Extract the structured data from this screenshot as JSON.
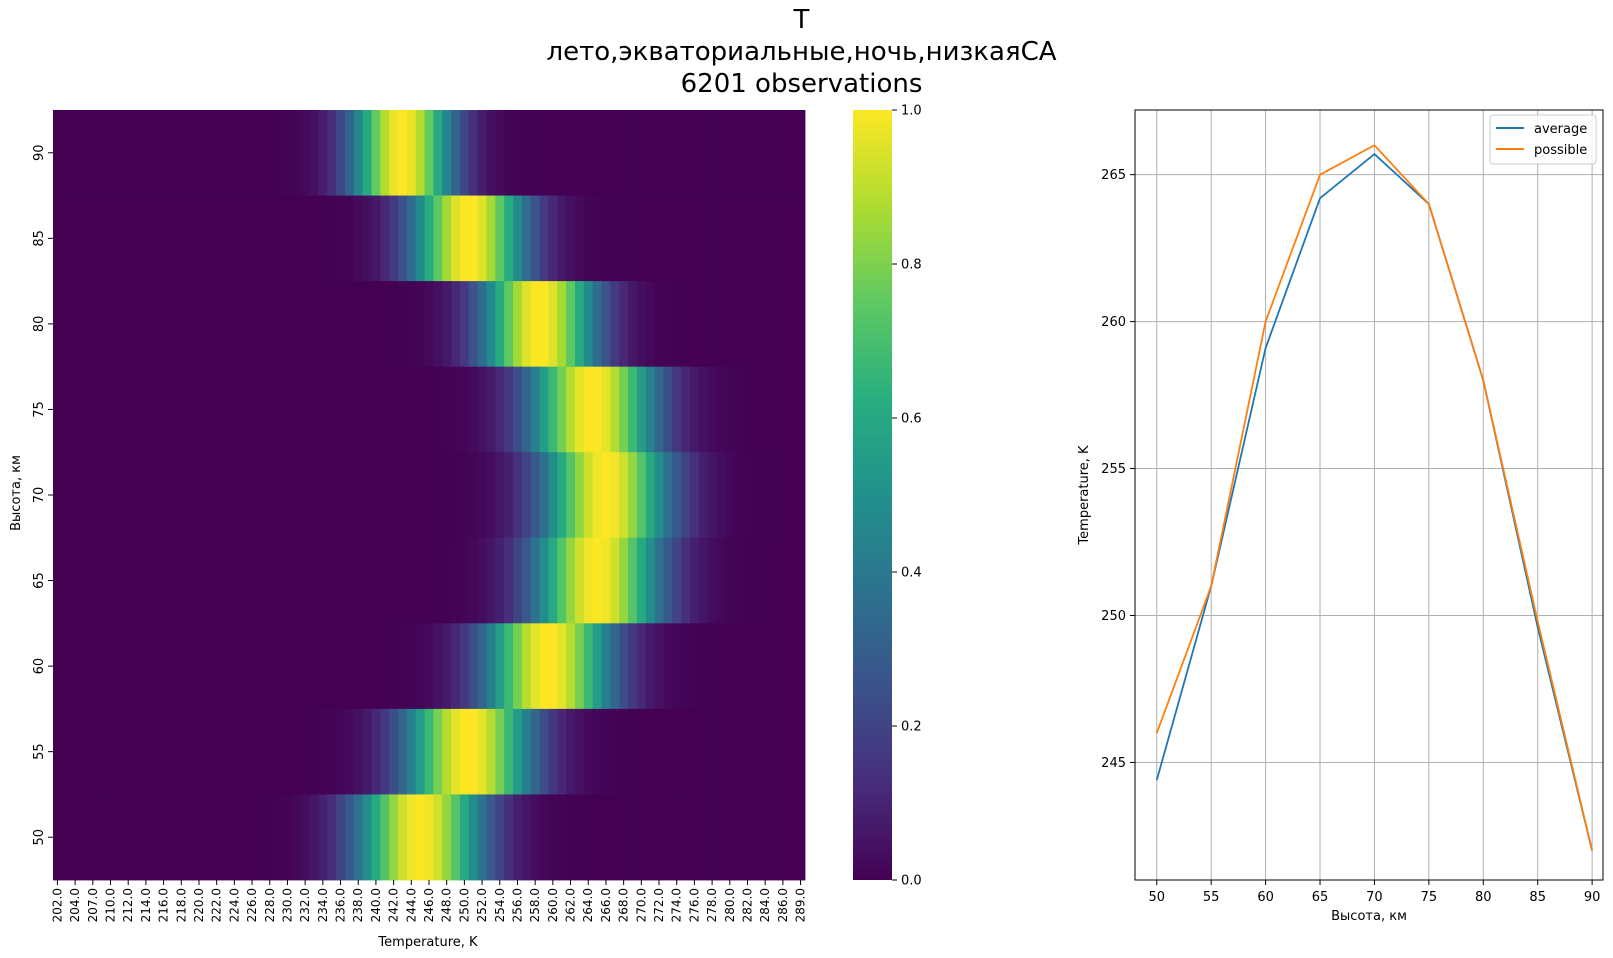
{
  "chart_data": [
    {
      "type": "heatmap",
      "title_lines": [
        "T",
        "лето,экваториальные,ночь,низкаяСА",
        "6201 observations"
      ],
      "xlabel": "Temperature, K",
      "ylabel": "Высота, км",
      "x_tick_labels": [
        "202.0",
        "204.0",
        "207.0",
        "210.0",
        "212.0",
        "214.0",
        "216.0",
        "218.0",
        "220.0",
        "222.0",
        "224.0",
        "226.0",
        "228.0",
        "230.0",
        "232.0",
        "234.0",
        "236.0",
        "238.0",
        "240.0",
        "242.0",
        "244.0",
        "246.0",
        "248.0",
        "250.0",
        "252.0",
        "254.0",
        "256.0",
        "258.0",
        "260.0",
        "262.0",
        "264.0",
        "266.0",
        "268.0",
        "270.0",
        "272.0",
        "274.0",
        "276.0",
        "278.0",
        "280.0",
        "282.0",
        "284.0",
        "286.0",
        "289.0"
      ],
      "rows": [
        {
          "altitude": 90,
          "label": "90",
          "peak": 243.0,
          "width": 4.0
        },
        {
          "altitude": 85,
          "label": "85",
          "peak": 250.5,
          "width": 4.5
        },
        {
          "altitude": 80,
          "label": "80",
          "peak": 258.5,
          "width": 4.5
        },
        {
          "altitude": 75,
          "label": "75",
          "peak": 264.5,
          "width": 5.0
        },
        {
          "altitude": 70,
          "label": "70",
          "peak": 266.0,
          "width": 5.0
        },
        {
          "altitude": 65,
          "label": "65",
          "peak": 265.0,
          "width": 5.0
        },
        {
          "altitude": 60,
          "label": "60",
          "peak": 259.5,
          "width": 5.0
        },
        {
          "altitude": 55,
          "label": "55",
          "peak": 250.5,
          "width": 5.0
        },
        {
          "altitude": 50,
          "label": "50",
          "peak": 245.0,
          "width": 5.0
        }
      ],
      "colorbar": {
        "min": 0.0,
        "max": 1.0,
        "ticks": [
          "0.0",
          "0.2",
          "0.4",
          "0.6",
          "0.8",
          "1.0"
        ],
        "colormap": "viridis"
      }
    },
    {
      "type": "line",
      "xlabel": "Высота, км",
      "ylabel": "Temperature, K",
      "x": [
        50,
        55,
        60,
        65,
        70,
        75,
        80,
        85,
        90
      ],
      "x_tick_labels": [
        "50",
        "55",
        "60",
        "65",
        "70",
        "75",
        "80",
        "85",
        "90"
      ],
      "y_tick_labels": [
        "245",
        "250",
        "255",
        "260",
        "265"
      ],
      "xlim": [
        48,
        91
      ],
      "ylim": [
        241.0,
        267.2
      ],
      "grid": true,
      "legend_position": "upper-right",
      "series": [
        {
          "name": "average",
          "color": "#1f77b4",
          "values": [
            244.4,
            251.0,
            259.1,
            264.2,
            265.7,
            264.0,
            258.0,
            249.6,
            242.0
          ]
        },
        {
          "name": "possible",
          "color": "#ff7f0e",
          "values": [
            246.0,
            251.0,
            260.0,
            265.0,
            266.0,
            264.0,
            258.0,
            249.8,
            242.0
          ]
        }
      ]
    }
  ]
}
